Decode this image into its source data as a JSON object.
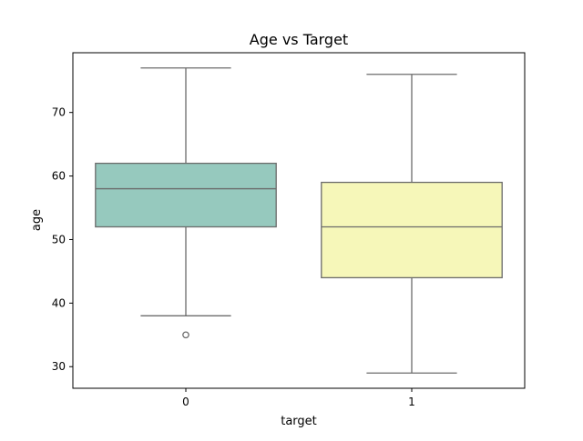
{
  "chart_data": {
    "type": "box",
    "title": "Age vs Target",
    "xlabel": "target",
    "ylabel": "age",
    "categories": [
      "0",
      "1"
    ],
    "ylim": [
      26.6,
      79.4
    ],
    "yticks": [
      30,
      40,
      50,
      60,
      70
    ],
    "boxes": [
      {
        "category": "0",
        "whisker_low": 38,
        "q1": 52,
        "median": 58,
        "q3": 62,
        "whisker_high": 77,
        "outliers": [
          35
        ],
        "color": "#96c9be"
      },
      {
        "category": "1",
        "whisker_low": 29,
        "q1": 44,
        "median": 52,
        "q3": 59,
        "whisker_high": 76,
        "outliers": [],
        "color": "#f6f7b9"
      }
    ],
    "edge_color": "#6b6b6b",
    "grid": false,
    "legend": "none"
  }
}
